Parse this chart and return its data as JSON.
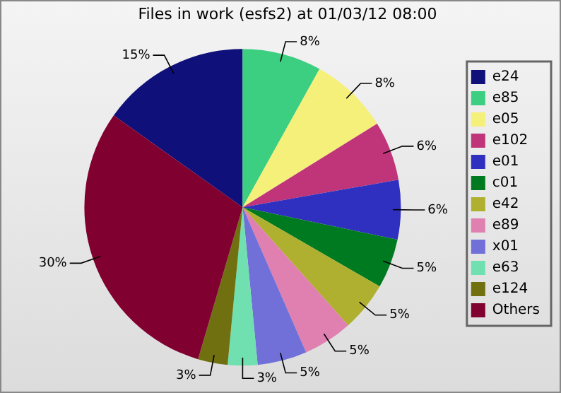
{
  "chart_data": {
    "type": "pie",
    "title": "Files in work (esfs2) at 01/03/12 08:00",
    "categories": [
      "e24",
      "e85",
      "e05",
      "e102",
      "e01",
      "c01",
      "e42",
      "e89",
      "x01",
      "e63",
      "e124",
      "Others"
    ],
    "values": [
      15,
      8,
      8,
      6,
      6,
      5,
      5,
      5,
      5,
      3,
      3,
      30
    ],
    "colors": [
      "#10107a",
      "#3ccf82",
      "#f5f07a",
      "#c0357a",
      "#3030c0",
      "#007a20",
      "#b0b030",
      "#e080b0",
      "#7070d8",
      "#70e0b0",
      "#707010",
      "#800030"
    ],
    "value_labels": [
      "15%",
      "8%",
      "8%",
      "6%",
      "6%",
      "5%",
      "5%",
      "5%",
      "5%",
      "3%",
      "3%",
      "30%"
    ],
    "legend": "right"
  }
}
